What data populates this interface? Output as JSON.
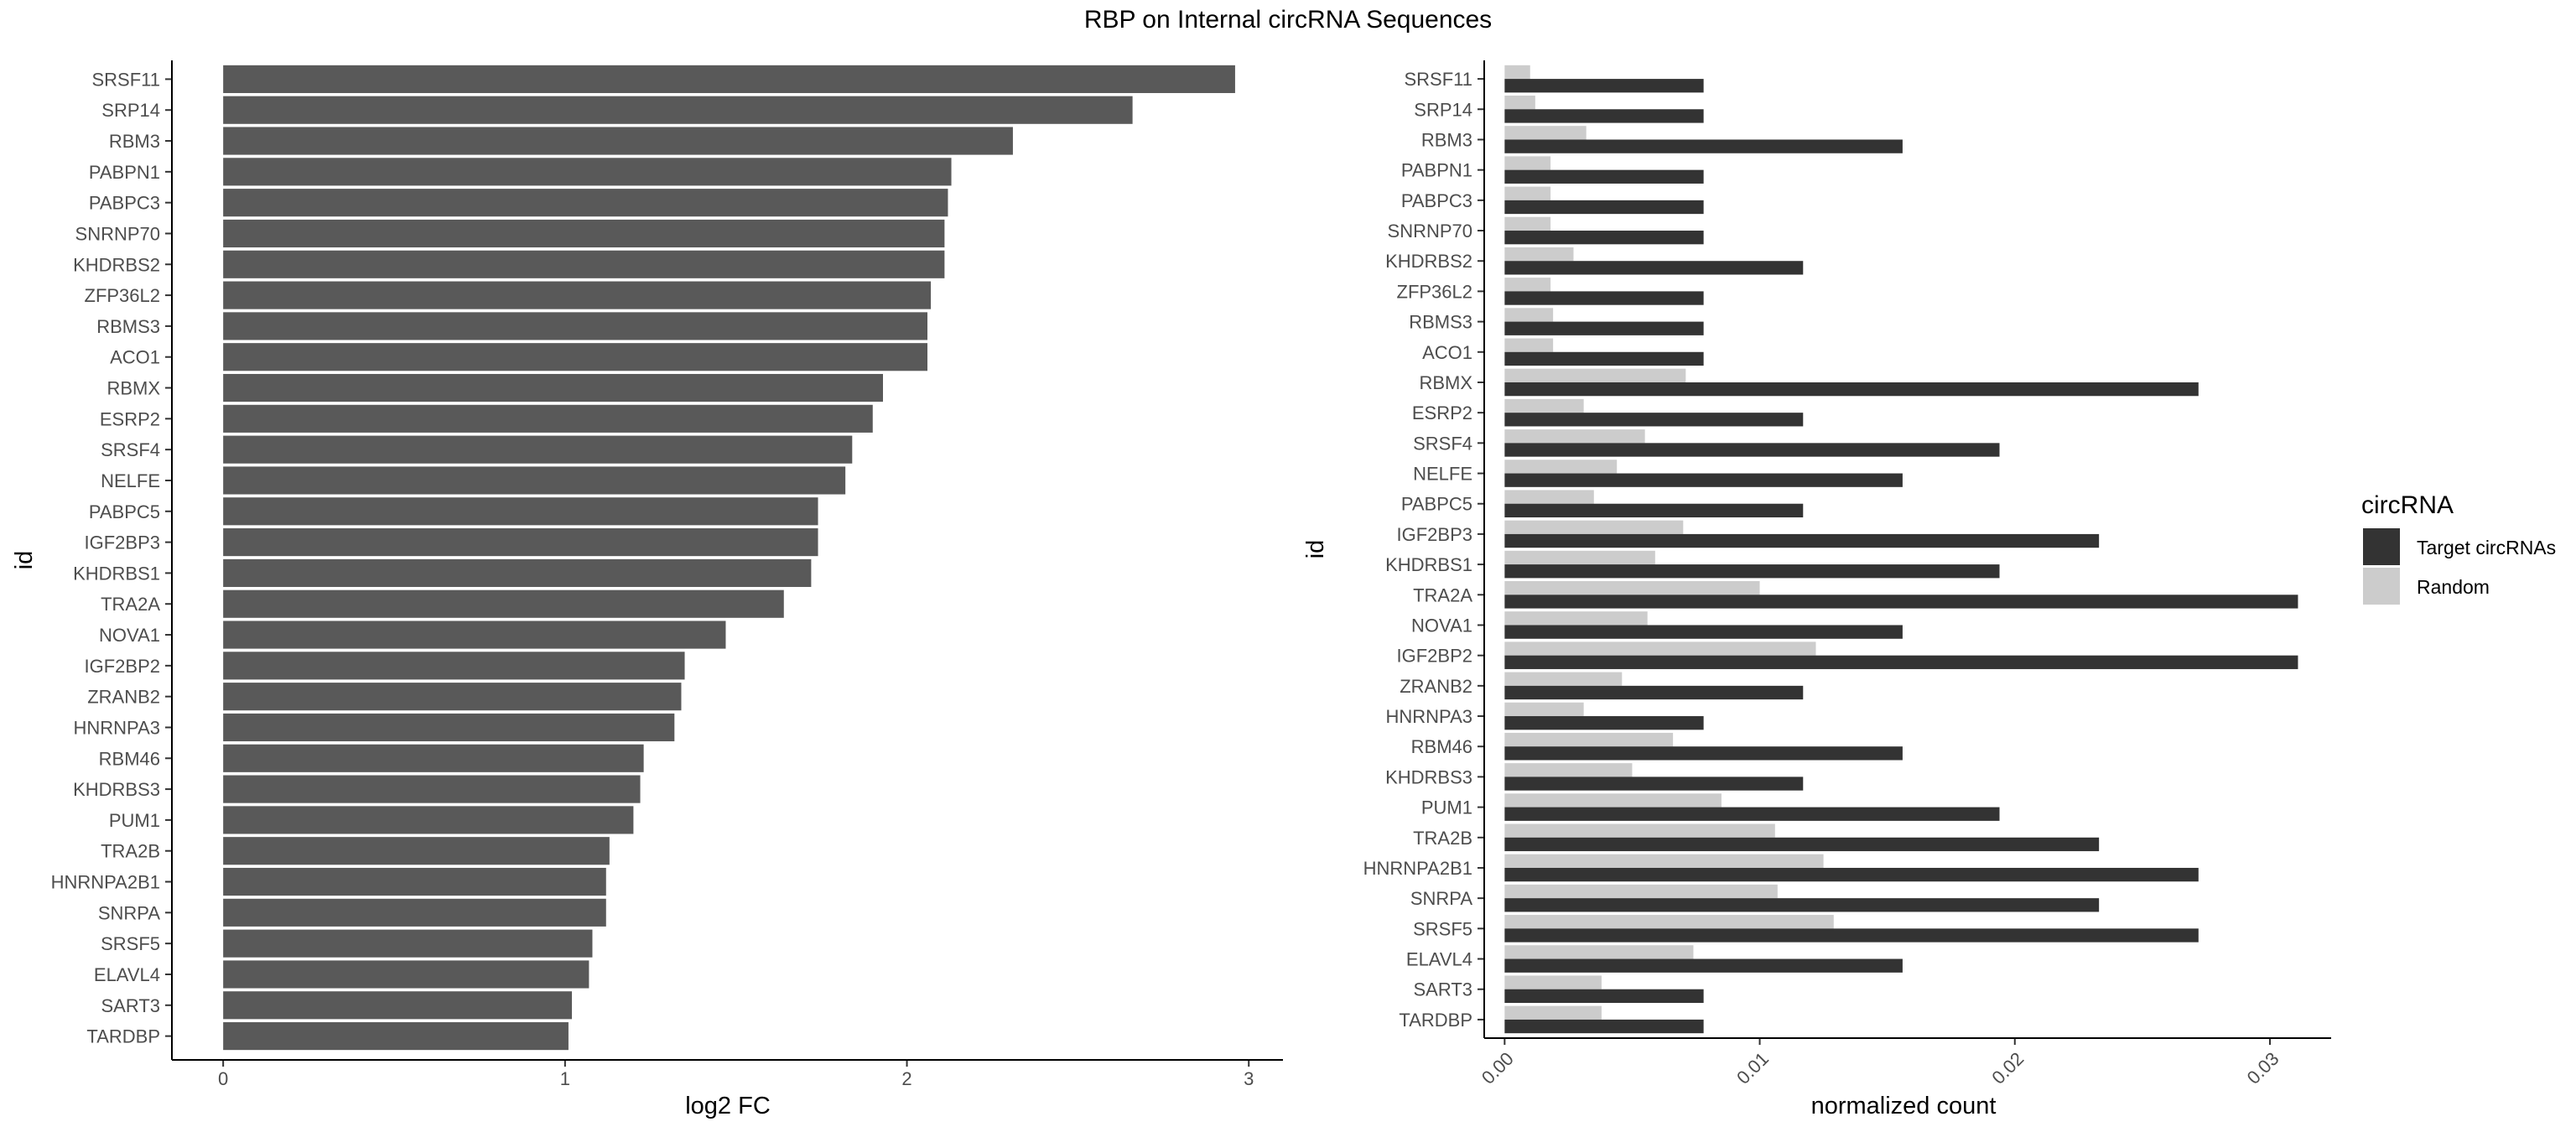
{
  "figure": {
    "title": "RBP on Internal circRNA Sequences",
    "colors": {
      "bar_left": "#595959",
      "target": "#333333",
      "random": "#cccccc",
      "axis": "#000000",
      "tick_text": "#4d4d4d"
    }
  },
  "chart_data": [
    {
      "type": "bar",
      "orientation": "horizontal",
      "xlabel": "log2 FC",
      "ylabel": "id",
      "xlim": [
        -0.15,
        3.1
      ],
      "xticks": [
        "0",
        "1",
        "2",
        "3"
      ],
      "grid": false,
      "categories": [
        "SRSF11",
        "SRP14",
        "RBM3",
        "PABPN1",
        "PABPC3",
        "SNRNP70",
        "KHDRBS2",
        "ZFP36L2",
        "RBMS3",
        "ACO1",
        "RBMX",
        "ESRP2",
        "SRSF4",
        "NELFE",
        "PABPC5",
        "IGF2BP3",
        "KHDRBS1",
        "TRA2A",
        "NOVA1",
        "IGF2BP2",
        "ZRANB2",
        "HNRNPA3",
        "RBM46",
        "KHDRBS3",
        "PUM1",
        "TRA2B",
        "HNRNPA2B1",
        "SNRPA",
        "SRSF5",
        "ELAVL4",
        "SART3",
        "TARDBP"
      ],
      "values": [
        2.96,
        2.66,
        2.31,
        2.13,
        2.12,
        2.11,
        2.11,
        2.07,
        2.06,
        2.06,
        1.93,
        1.9,
        1.84,
        1.82,
        1.74,
        1.74,
        1.72,
        1.64,
        1.47,
        1.35,
        1.34,
        1.32,
        1.23,
        1.22,
        1.2,
        1.13,
        1.12,
        1.12,
        1.08,
        1.07,
        1.02,
        1.01
      ]
    },
    {
      "type": "bar",
      "orientation": "horizontal",
      "grouped": true,
      "xlabel": "normalized count",
      "ylabel": "id",
      "xlim": [
        -0.0008,
        0.0324
      ],
      "xticks": [
        "0.00",
        "0.01",
        "0.02",
        "0.03"
      ],
      "grid": false,
      "legend": {
        "title": "circRNA",
        "position": "right"
      },
      "categories": [
        "SRSF11",
        "SRP14",
        "RBM3",
        "PABPN1",
        "PABPC3",
        "SNRNP70",
        "KHDRBS2",
        "ZFP36L2",
        "RBMS3",
        "ACO1",
        "RBMX",
        "ESRP2",
        "SRSF4",
        "NELFE",
        "PABPC5",
        "IGF2BP3",
        "KHDRBS1",
        "TRA2A",
        "NOVA1",
        "IGF2BP2",
        "ZRANB2",
        "HNRNPA3",
        "RBM46",
        "KHDRBS3",
        "PUM1",
        "TRA2B",
        "HNRNPA2B1",
        "SNRPA",
        "SRSF5",
        "ELAVL4",
        "SART3",
        "TARDBP"
      ],
      "series": [
        {
          "name": "Target circRNAs",
          "color": "#333333",
          "values": [
            0.0078,
            0.0078,
            0.0156,
            0.0078,
            0.0078,
            0.0078,
            0.0117,
            0.0078,
            0.0078,
            0.0078,
            0.0272,
            0.0117,
            0.0194,
            0.0156,
            0.0117,
            0.0233,
            0.0194,
            0.0311,
            0.0156,
            0.0311,
            0.0117,
            0.0078,
            0.0156,
            0.0117,
            0.0194,
            0.0233,
            0.0272,
            0.0233,
            0.0272,
            0.0156,
            0.0078,
            0.0078
          ]
        },
        {
          "name": "Random",
          "color": "#cccccc",
          "values": [
            0.001,
            0.0012,
            0.0032,
            0.0018,
            0.0018,
            0.0018,
            0.0027,
            0.0018,
            0.0019,
            0.0019,
            0.0071,
            0.0031,
            0.0055,
            0.0044,
            0.0035,
            0.007,
            0.0059,
            0.01,
            0.0056,
            0.0122,
            0.0046,
            0.0031,
            0.0066,
            0.005,
            0.0085,
            0.0106,
            0.0125,
            0.0107,
            0.0129,
            0.0074,
            0.0038,
            0.0038
          ]
        }
      ]
    }
  ]
}
